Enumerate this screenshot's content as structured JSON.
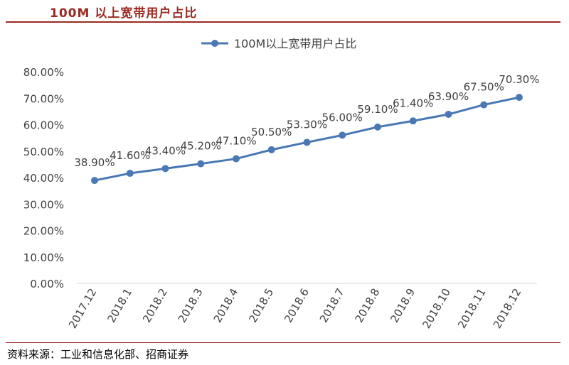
{
  "header": {
    "title": "100M 以上宽带用户占比"
  },
  "footer": {
    "source": "资料来源：工业和信息化部、招商证券"
  },
  "chart_data": {
    "type": "line",
    "title": "",
    "xlabel": "",
    "ylabel": "",
    "categories": [
      "2017.12",
      "2018.1",
      "2018.2",
      "2018.3",
      "2018.4",
      "2018.5",
      "2018.6",
      "2018.7",
      "2018.8",
      "2018.9",
      "2018.10",
      "2018.11",
      "2018.12"
    ],
    "series": [
      {
        "name": "100M以上宽带用户占比",
        "values": [
          38.9,
          41.6,
          43.4,
          45.2,
          47.1,
          50.5,
          53.3,
          56.0,
          59.1,
          61.4,
          63.9,
          67.5,
          70.3
        ],
        "labels": [
          "38.90%",
          "41.60%",
          "43.40%",
          "45.20%",
          "47.10%",
          "50.50%",
          "53.30%",
          "56.00%",
          "59.10%",
          "61.40%",
          "63.90%",
          "67.50%",
          "70.30%"
        ],
        "color": "#4a78b5"
      }
    ],
    "yticks": [
      "0.00%",
      "10.00%",
      "20.00%",
      "30.00%",
      "40.00%",
      "50.00%",
      "60.00%",
      "70.00%",
      "80.00%"
    ],
    "ylim": [
      0,
      80
    ],
    "grid": false,
    "legend": "top"
  }
}
